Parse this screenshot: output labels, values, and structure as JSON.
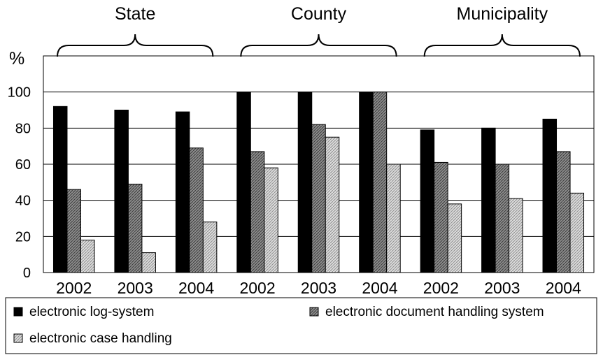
{
  "chart_data": {
    "type": "bar",
    "groups": [
      "State",
      "County",
      "Municipality"
    ],
    "categories": [
      "2002",
      "2003",
      "2004"
    ],
    "series": [
      {
        "name": "electronic log-system",
        "color": "#000000",
        "pattern": "solid",
        "values": [
          [
            92,
            90,
            89
          ],
          [
            100,
            100,
            100
          ],
          [
            79,
            80,
            85
          ]
        ]
      },
      {
        "name": "electronic document handling system",
        "color": "#8c8c8c",
        "pattern": "dark-hatch",
        "values": [
          [
            46,
            49,
            69
          ],
          [
            67,
            82,
            100
          ],
          [
            61,
            60,
            67
          ]
        ]
      },
      {
        "name": "electronic case handling",
        "color": "#d0d0d0",
        "pattern": "light-hatch",
        "values": [
          [
            18,
            11,
            28
          ],
          [
            58,
            75,
            60
          ],
          [
            38,
            41,
            44
          ]
        ]
      }
    ],
    "ylabel": "%",
    "ylim": [
      0,
      120
    ],
    "yticks": [
      0,
      20,
      40,
      60,
      80,
      100
    ],
    "grid": true,
    "legend_position": "bottom"
  }
}
